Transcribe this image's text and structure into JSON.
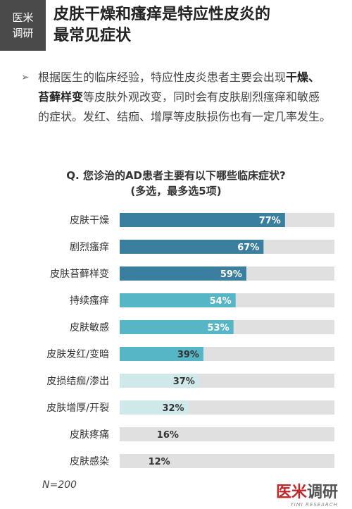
{
  "header": {
    "badge_line1": "医米",
    "badge_line2": "调研",
    "title_line1": "皮肤干燥和瘙痒是特应性皮炎的",
    "title_line2": "最常见症状"
  },
  "bullet": {
    "text_1": "根据医生的临床经验，特应性皮炎患者主要会出现",
    "bold_1": "干燥、苔藓样变",
    "text_2": "等皮肤外观改变，同时会有皮肤剧烈瘙痒和敏感的症状。发红、结痂、增厚等皮肤损伤也有一定几率发生。"
  },
  "question": {
    "line1": "Q. 您诊治的AD患者主要有以下哪些临床症状?",
    "line2": "(多选，最多选5项)"
  },
  "chart_data": {
    "type": "bar",
    "orientation": "horizontal",
    "categories": [
      "皮肤干燥",
      "剧烈瘙痒",
      "皮肤苔藓样变",
      "持续瘙痒",
      "皮肤敏感",
      "皮肤发红/变暗",
      "皮损结痂/渗出",
      "皮肤增厚/开裂",
      "皮肤疼痛",
      "皮肤感染"
    ],
    "values": [
      77,
      67,
      59,
      54,
      53,
      39,
      37,
      32,
      16,
      12
    ],
    "value_labels": [
      "77%",
      "67%",
      "59%",
      "54%",
      "53%",
      "39%",
      "37%",
      "32%",
      "16%",
      "12%"
    ],
    "xlim": [
      0,
      100
    ],
    "colors": [
      "#3a7fa0",
      "#3a7fa0",
      "#3a7fa0",
      "#56b6c5",
      "#56b6c5",
      "#56b6c5",
      "#cfe9ea",
      "#cfe9ea",
      "#e0e0e0",
      "#e0e0e0"
    ],
    "track_color": "#e0e0e0",
    "label_colors": [
      "#ffffff",
      "#ffffff",
      "#ffffff",
      "#ffffff",
      "#ffffff",
      "#333333",
      "#333333",
      "#333333",
      "#333333",
      "#333333"
    ]
  },
  "footer": {
    "n": "N=200",
    "logo_text_1": "医米",
    "logo_text_2": "调研",
    "logo_sub": "YIMI RESEARCH"
  }
}
